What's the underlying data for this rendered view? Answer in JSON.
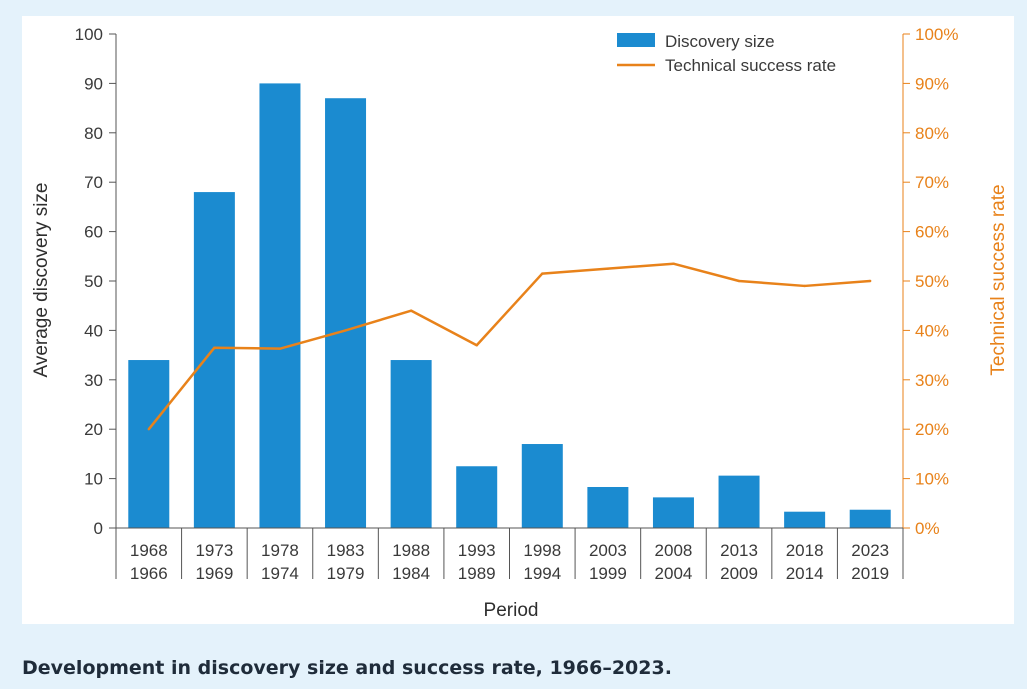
{
  "caption": "Development in discovery size and success rate, 1966–2023.",
  "colors": {
    "bar": "#1b8bd0",
    "line": "#e8821a",
    "axis": "#555555",
    "background": "#e4f2fb"
  },
  "chart_data": {
    "type": "bar",
    "categories": [
      [
        "1968",
        "1966"
      ],
      [
        "1973",
        "1969"
      ],
      [
        "1978",
        "1974"
      ],
      [
        "1983",
        "1979"
      ],
      [
        "1988",
        "1984"
      ],
      [
        "1993",
        "1989"
      ],
      [
        "1998",
        "1994"
      ],
      [
        "2003",
        "1999"
      ],
      [
        "2008",
        "2004"
      ],
      [
        "2013",
        "2009"
      ],
      [
        "2018",
        "2014"
      ],
      [
        "2023",
        "2019"
      ]
    ],
    "series": [
      {
        "name": "Discovery size",
        "type": "bar",
        "axis": "left",
        "values": [
          34,
          68,
          90,
          87,
          34,
          12.5,
          17,
          8.3,
          6.2,
          10.6,
          3.3,
          3.7
        ]
      },
      {
        "name": "Technical success rate",
        "type": "line",
        "axis": "right",
        "values": [
          20,
          36.5,
          36.3,
          40,
          44,
          37,
          51.5,
          52.5,
          53.5,
          50,
          49,
          50
        ]
      }
    ],
    "xlabel": "Period",
    "ylabel": "Average discovery size",
    "y2label": "Technical success rate",
    "ylim": [
      0,
      100
    ],
    "y2lim": [
      0,
      100
    ],
    "yticks": [
      0,
      10,
      20,
      30,
      40,
      50,
      60,
      70,
      80,
      90,
      100
    ],
    "y2ticks": [
      "0%",
      "10%",
      "20%",
      "30%",
      "40%",
      "50%",
      "60%",
      "70%",
      "80%",
      "90%",
      "100%"
    ],
    "legend": "top-right",
    "grid": false
  }
}
